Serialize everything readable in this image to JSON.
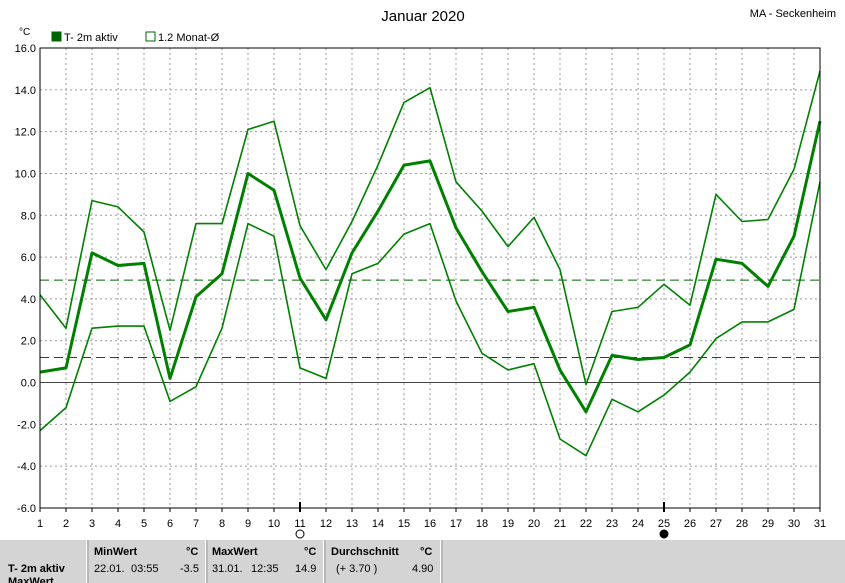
{
  "chart_data": {
    "type": "line",
    "title": "Januar 2020",
    "station": "MA - Seckenheim",
    "ylabel": "°C",
    "ylim": [
      -6.0,
      16.0
    ],
    "yticks": [
      "-6.0",
      "-4.0",
      "-2.0",
      "0.0",
      "2.0",
      "4.0",
      "6.0",
      "8.0",
      "10.0",
      "12.0",
      "14.0",
      "16.0"
    ],
    "x": [
      1,
      2,
      3,
      4,
      5,
      6,
      7,
      8,
      9,
      10,
      11,
      12,
      13,
      14,
      15,
      16,
      17,
      18,
      19,
      20,
      21,
      22,
      23,
      24,
      25,
      26,
      27,
      28,
      29,
      30,
      31
    ],
    "xticks": [
      "1",
      "2",
      "3",
      "4",
      "5",
      "6",
      "7",
      "8",
      "9",
      "10",
      "11",
      "12",
      "13",
      "14",
      "15",
      "16",
      "17",
      "18",
      "19",
      "20",
      "21",
      "22",
      "23",
      "24",
      "25",
      "26",
      "27",
      "28",
      "29",
      "30",
      "31"
    ],
    "grid": true,
    "legend": [
      {
        "label": "T- 2m aktiv",
        "color": "#006400",
        "filled": true
      },
      {
        "label": "1.2 Monat-Ø",
        "color": "#006400",
        "filled": false
      }
    ],
    "series": [
      {
        "name": "T- 2m aktiv",
        "role": "mean",
        "color": "#008000",
        "values": [
          0.5,
          0.7,
          6.2,
          5.6,
          5.7,
          0.2,
          4.1,
          5.2,
          10.0,
          9.2,
          5.0,
          3.0,
          6.2,
          8.2,
          10.4,
          10.6,
          7.4,
          5.3,
          3.4,
          3.6,
          0.6,
          -1.4,
          1.3,
          1.1,
          1.2,
          1.8,
          5.9,
          5.7,
          4.6,
          7.0,
          12.5
        ]
      },
      {
        "role": "max",
        "color": "#008000",
        "values": [
          4.2,
          2.6,
          8.7,
          8.4,
          7.2,
          2.5,
          7.6,
          7.6,
          12.1,
          12.5,
          7.5,
          5.4,
          7.7,
          10.4,
          13.4,
          14.1,
          9.6,
          8.2,
          6.5,
          7.9,
          5.4,
          -0.1,
          3.4,
          3.6,
          4.7,
          3.7,
          9.0,
          7.7,
          7.8,
          10.2,
          14.9
        ]
      },
      {
        "role": "min",
        "color": "#008000",
        "values": [
          -2.3,
          -1.2,
          2.6,
          2.7,
          2.7,
          -0.9,
          -0.2,
          2.6,
          7.6,
          7.0,
          0.7,
          0.2,
          5.2,
          5.7,
          7.1,
          7.6,
          3.9,
          1.4,
          0.6,
          0.9,
          -2.7,
          -3.5,
          -0.8,
          -1.4,
          -0.6,
          0.5,
          2.1,
          2.9,
          2.9,
          3.5,
          9.6
        ]
      }
    ],
    "reference_lines": [
      {
        "value": 4.9,
        "style": "dashed",
        "color": "#006400"
      },
      {
        "value": 1.2,
        "style": "dashed",
        "color": "#006400"
      }
    ],
    "moon_phases": [
      {
        "day": 11,
        "phase": "full"
      },
      {
        "day": 25,
        "phase": "new"
      }
    ]
  },
  "footer": {
    "row1_label": "T- 2m aktiv",
    "row2_label": "MaxWert",
    "min": {
      "header": "MinWert",
      "unit": "°C",
      "date": "22.01.",
      "time": "03:55",
      "value": "-3.5"
    },
    "max": {
      "header": "MaxWert",
      "unit": "°C",
      "date": "31.01.",
      "time": "12:35",
      "value": "14.9"
    },
    "avg": {
      "header": "Durchschnitt",
      "unit": "°C",
      "delta": "(+ 3.70 )",
      "value": "4.90"
    }
  }
}
